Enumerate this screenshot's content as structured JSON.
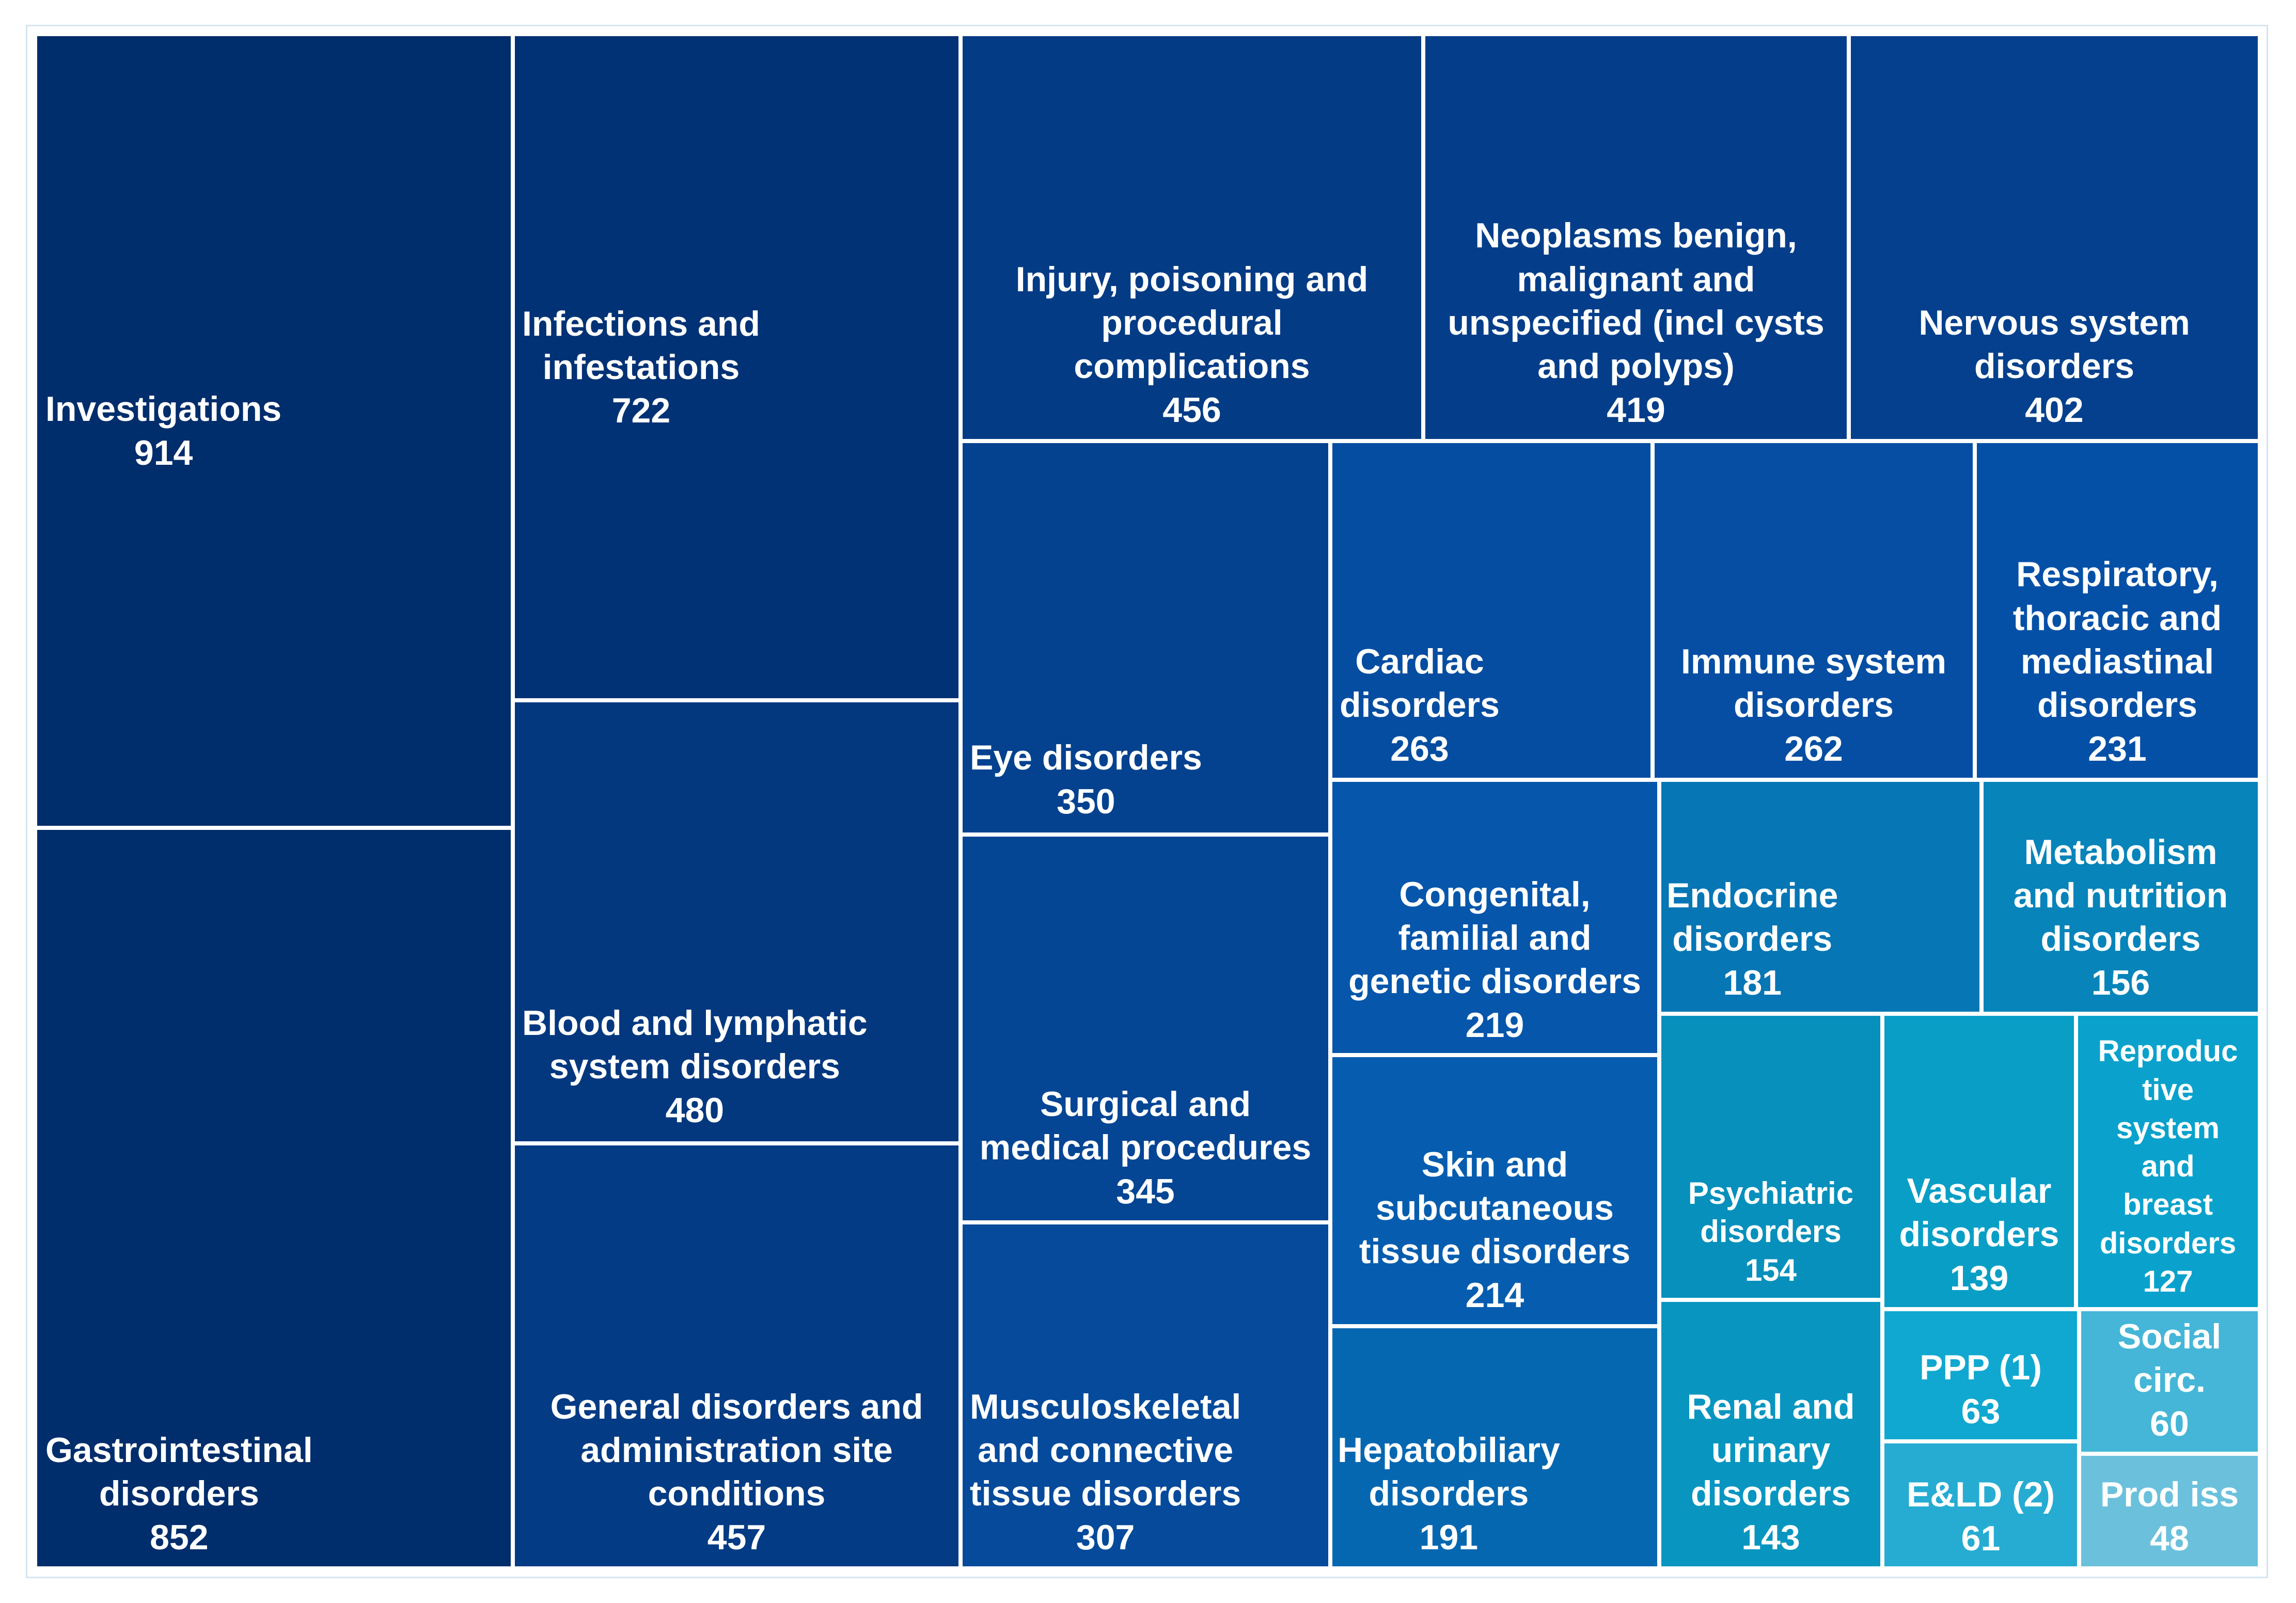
{
  "chart_data": {
    "type": "treemap",
    "title": "",
    "items": [
      {
        "name": "Investigations",
        "label": "Investigations",
        "value": 914,
        "color": "#002d6b"
      },
      {
        "name": "Gastrointestinal disorders",
        "label": "Gastrointestinal\ndisorders",
        "value": 852,
        "color": "#002d6b"
      },
      {
        "name": "Infections and infestations",
        "label": "Infections and\ninfestations",
        "value": 722,
        "color": "#013275"
      },
      {
        "name": "Blood and lymphatic system disorders",
        "label": "Blood and lymphatic\nsystem disorders",
        "value": 480,
        "color": "#03387f"
      },
      {
        "name": "General disorders and administration site conditions",
        "label": "General disorders and\nadministration site\nconditions",
        "value": 457,
        "color": "#033b84"
      },
      {
        "name": "Injury, poisoning and procedural complications",
        "label": "Injury, poisoning and\nprocedural\ncomplications",
        "value": 456,
        "color": "#033b85"
      },
      {
        "name": "Neoplasms benign, malignant and unspecified (incl cysts and polyps)",
        "label": "Neoplasms benign,\nmalignant and\nunspecified (incl cysts\nand polyps)",
        "value": 419,
        "color": "#043e8a"
      },
      {
        "name": "Nervous system disorders",
        "label": "Nervous system\ndisorders",
        "value": 402,
        "color": "#04408d"
      },
      {
        "name": "Eye disorders",
        "label": "Eye disorders",
        "value": 350,
        "color": "#04428f"
      },
      {
        "name": "Surgical and medical procedures",
        "label": "Surgical and\nmedical procedures",
        "value": 345,
        "color": "#044594"
      },
      {
        "name": "Musculoskeletal and connective tissue disorders",
        "label": "Musculoskeletal\nand connective\ntissue disorders",
        "value": 307,
        "color": "#054a9b"
      },
      {
        "name": "Cardiac disorders",
        "label": "Cardiac\ndisorders",
        "value": 263,
        "color": "#054da0"
      },
      {
        "name": "Immune system disorders",
        "label": "Immune system\ndisorders",
        "value": 262,
        "color": "#054ea3"
      },
      {
        "name": "Respiratory, thoracic and mediastinal disorders",
        "label": "Respiratory,\nthoracic and\nmediastinal\ndisorders",
        "value": 231,
        "color": "#0550a7"
      },
      {
        "name": "Congenital, familial and genetic disorders",
        "label": "Congenital,\nfamilial and\ngenetic disorders",
        "value": 219,
        "color": "#0656ab"
      },
      {
        "name": "Skin and subcutaneous tissue disorders",
        "label": "Skin and\nsubcutaneous\ntissue disorders",
        "value": 214,
        "color": "#065daf"
      },
      {
        "name": "Hepatobiliary disorders",
        "label": "Hepatobiliary\ndisorders",
        "value": 191,
        "color": "#0667b1"
      },
      {
        "name": "Endocrine disorders",
        "label": "Endocrine\ndisorders",
        "value": 181,
        "color": "#0676b5"
      },
      {
        "name": "Metabolism and nutrition disorders",
        "label": "Metabolism\nand nutrition\ndisorders",
        "value": 156,
        "color": "#0784b9"
      },
      {
        "name": "Psychiatric disorders",
        "label": "Psychiatric\ndisorders",
        "value": 154,
        "color": "#0790bc"
      },
      {
        "name": "Renal and urinary disorders",
        "label": "Renal and\nurinary\ndisorders",
        "value": 143,
        "color": "#0896c0"
      },
      {
        "name": "Vascular disorders",
        "label": "Vascular\ndisorders",
        "value": 139,
        "color": "#099ec6"
      },
      {
        "name": "Reproductive system and breast disorders",
        "label": "Reproduc\ntive\nsystem\nand\nbreast\ndisorders",
        "value": 127,
        "color": "#0aa2cc"
      },
      {
        "name": "PPP (1)",
        "label": "PPP (1)",
        "value": 63,
        "color": "#10a8d0"
      },
      {
        "name": "E&LD (2)",
        "label": "E&LD (2)",
        "value": 61,
        "color": "#26acd2"
      },
      {
        "name": "Social circ.",
        "label": "Social\ncirc.",
        "value": 60,
        "color": "#45b6d7"
      },
      {
        "name": "Prod iss",
        "label": "Prod iss",
        "value": 48,
        "color": "#6bc1dc"
      }
    ]
  }
}
